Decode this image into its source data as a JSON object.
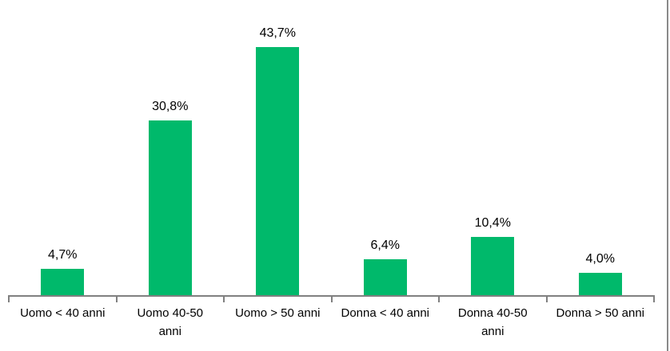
{
  "chart_data": {
    "type": "bar",
    "categories": [
      "Uomo < 40 anni",
      "Uomo 40-50\nanni",
      "Uomo > 50 anni",
      "Donna < 40 anni",
      "Donna 40-50\nanni",
      "Donna > 50 anni"
    ],
    "values": [
      4.7,
      30.8,
      43.7,
      6.4,
      10.4,
      4.0
    ],
    "value_labels": [
      "4,7%",
      "30,8%",
      "43,7%",
      "6,4%",
      "10,4%",
      "4,0%"
    ],
    "ylim": [
      0,
      50
    ],
    "grid": false,
    "legend": false,
    "bar_color": "#00B96B",
    "axis_color": "#808080",
    "border_color": "#8A8A8A",
    "text_color": "#000000"
  }
}
